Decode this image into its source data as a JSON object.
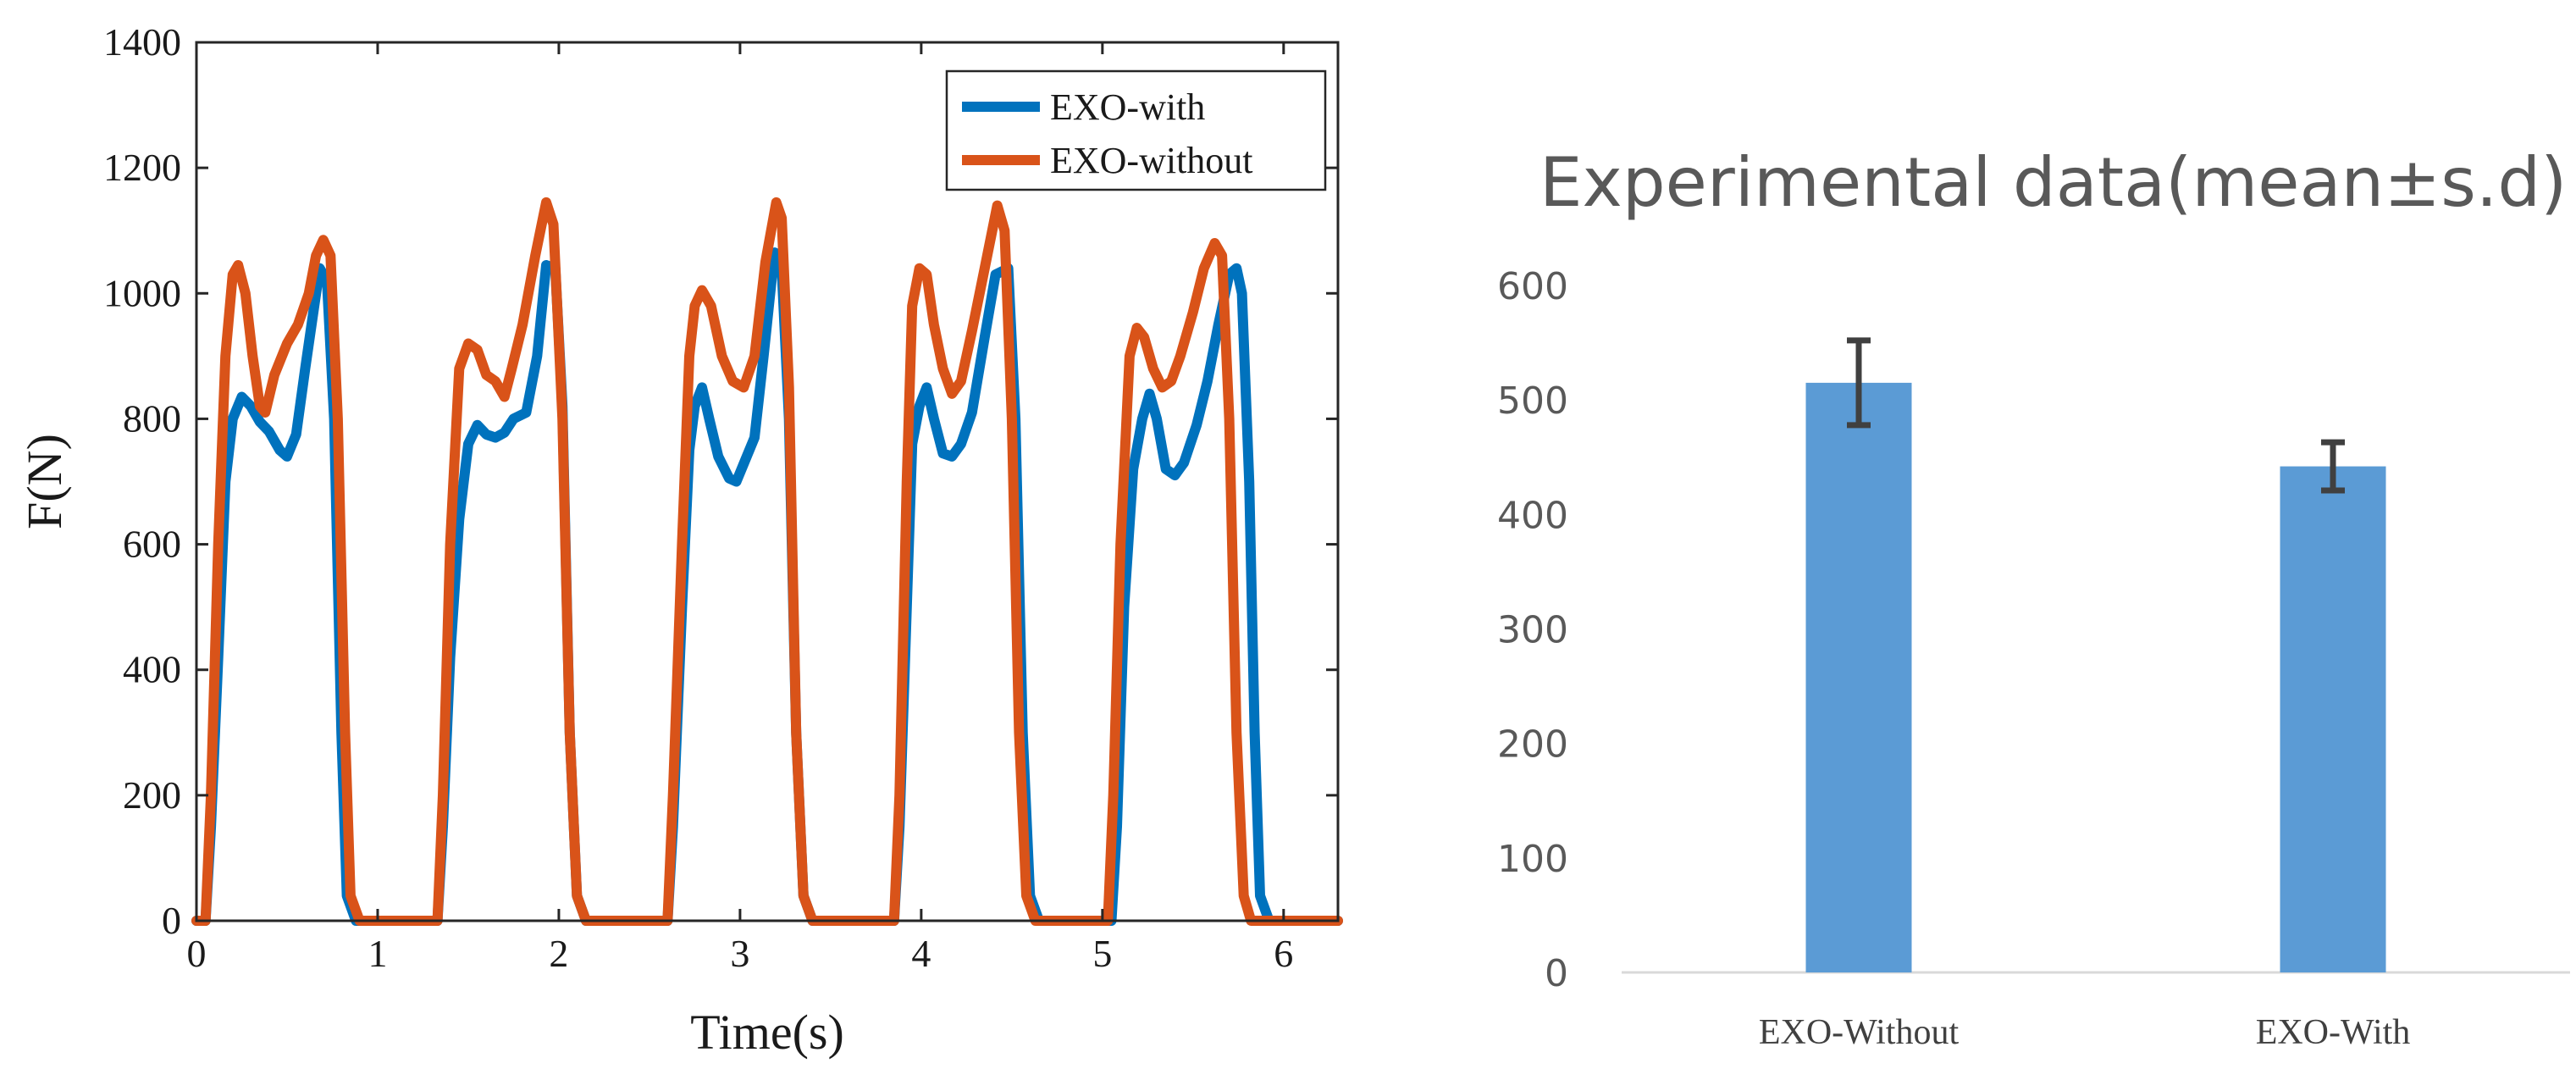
{
  "chart_data": [
    {
      "type": "line",
      "title": "",
      "xlabel": "Time(s)",
      "ylabel": "F(N)",
      "xlim": [
        0,
        6.3
      ],
      "ylim": [
        0,
        1400
      ],
      "xticks": [
        0,
        1,
        2,
        3,
        4,
        5,
        6
      ],
      "yticks": [
        0,
        200,
        400,
        600,
        800,
        1000,
        1200,
        1400
      ],
      "legend_position": "top-right",
      "series": [
        {
          "name": "EXO-with",
          "color": "#0072BD",
          "points": [
            [
              0.0,
              0
            ],
            [
              0.05,
              0
            ],
            [
              0.08,
              150
            ],
            [
              0.12,
              420
            ],
            [
              0.16,
              700
            ],
            [
              0.2,
              800
            ],
            [
              0.25,
              835
            ],
            [
              0.3,
              820
            ],
            [
              0.35,
              795
            ],
            [
              0.4,
              780
            ],
            [
              0.46,
              750
            ],
            [
              0.5,
              740
            ],
            [
              0.55,
              775
            ],
            [
              0.6,
              880
            ],
            [
              0.65,
              980
            ],
            [
              0.68,
              1040
            ],
            [
              0.72,
              1020
            ],
            [
              0.76,
              800
            ],
            [
              0.8,
              300
            ],
            [
              0.83,
              40
            ],
            [
              0.88,
              0
            ],
            [
              1.0,
              0
            ],
            [
              1.33,
              0
            ],
            [
              1.36,
              150
            ],
            [
              1.4,
              420
            ],
            [
              1.45,
              640
            ],
            [
              1.5,
              760
            ],
            [
              1.55,
              790
            ],
            [
              1.6,
              775
            ],
            [
              1.65,
              770
            ],
            [
              1.7,
              778
            ],
            [
              1.75,
              800
            ],
            [
              1.82,
              810
            ],
            [
              1.88,
              900
            ],
            [
              1.93,
              1045
            ],
            [
              1.98,
              1040
            ],
            [
              2.02,
              820
            ],
            [
              2.06,
              300
            ],
            [
              2.1,
              40
            ],
            [
              2.15,
              0
            ],
            [
              2.6,
              0
            ],
            [
              2.63,
              150
            ],
            [
              2.68,
              500
            ],
            [
              2.72,
              750
            ],
            [
              2.75,
              820
            ],
            [
              2.79,
              850
            ],
            [
              2.83,
              800
            ],
            [
              2.88,
              740
            ],
            [
              2.94,
              705
            ],
            [
              2.98,
              700
            ],
            [
              3.03,
              735
            ],
            [
              3.08,
              770
            ],
            [
              3.13,
              900
            ],
            [
              3.19,
              1065
            ],
            [
              3.23,
              1040
            ],
            [
              3.27,
              800
            ],
            [
              3.31,
              300
            ],
            [
              3.35,
              40
            ],
            [
              3.4,
              0
            ],
            [
              3.85,
              0
            ],
            [
              3.88,
              150
            ],
            [
              3.92,
              500
            ],
            [
              3.95,
              760
            ],
            [
              3.99,
              820
            ],
            [
              4.03,
              850
            ],
            [
              4.07,
              800
            ],
            [
              4.12,
              745
            ],
            [
              4.17,
              740
            ],
            [
              4.22,
              760
            ],
            [
              4.28,
              810
            ],
            [
              4.35,
              930
            ],
            [
              4.41,
              1030
            ],
            [
              4.48,
              1040
            ],
            [
              4.52,
              800
            ],
            [
              4.56,
              300
            ],
            [
              4.6,
              40
            ],
            [
              4.65,
              0
            ],
            [
              5.05,
              0
            ],
            [
              5.08,
              150
            ],
            [
              5.12,
              500
            ],
            [
              5.17,
              720
            ],
            [
              5.22,
              800
            ],
            [
              5.26,
              840
            ],
            [
              5.3,
              800
            ],
            [
              5.35,
              720
            ],
            [
              5.4,
              710
            ],
            [
              5.45,
              730
            ],
            [
              5.52,
              790
            ],
            [
              5.58,
              860
            ],
            [
              5.64,
              950
            ],
            [
              5.7,
              1030
            ],
            [
              5.74,
              1040
            ],
            [
              5.77,
              1000
            ],
            [
              5.81,
              700
            ],
            [
              5.84,
              300
            ],
            [
              5.87,
              40
            ],
            [
              5.92,
              0
            ],
            [
              6.3,
              0
            ]
          ]
        },
        {
          "name": "EXO-without",
          "color": "#D95319",
          "points": [
            [
              0.0,
              0
            ],
            [
              0.05,
              0
            ],
            [
              0.08,
              200
            ],
            [
              0.12,
              600
            ],
            [
              0.16,
              900
            ],
            [
              0.2,
              1030
            ],
            [
              0.23,
              1045
            ],
            [
              0.27,
              1000
            ],
            [
              0.31,
              900
            ],
            [
              0.35,
              820
            ],
            [
              0.38,
              810
            ],
            [
              0.43,
              870
            ],
            [
              0.5,
              920
            ],
            [
              0.56,
              950
            ],
            [
              0.62,
              1000
            ],
            [
              0.66,
              1060
            ],
            [
              0.7,
              1085
            ],
            [
              0.74,
              1060
            ],
            [
              0.78,
              800
            ],
            [
              0.82,
              300
            ],
            [
              0.85,
              40
            ],
            [
              0.9,
              0
            ],
            [
              1.0,
              0
            ],
            [
              1.33,
              0
            ],
            [
              1.36,
              200
            ],
            [
              1.4,
              600
            ],
            [
              1.45,
              880
            ],
            [
              1.5,
              920
            ],
            [
              1.55,
              910
            ],
            [
              1.6,
              870
            ],
            [
              1.65,
              860
            ],
            [
              1.7,
              835
            ],
            [
              1.74,
              880
            ],
            [
              1.8,
              950
            ],
            [
              1.87,
              1060
            ],
            [
              1.93,
              1145
            ],
            [
              1.97,
              1110
            ],
            [
              2.02,
              800
            ],
            [
              2.06,
              300
            ],
            [
              2.1,
              40
            ],
            [
              2.15,
              0
            ],
            [
              2.6,
              0
            ],
            [
              2.63,
              200
            ],
            [
              2.68,
              600
            ],
            [
              2.72,
              900
            ],
            [
              2.75,
              980
            ],
            [
              2.79,
              1005
            ],
            [
              2.84,
              980
            ],
            [
              2.9,
              900
            ],
            [
              2.96,
              860
            ],
            [
              3.02,
              850
            ],
            [
              3.08,
              900
            ],
            [
              3.14,
              1050
            ],
            [
              3.2,
              1145
            ],
            [
              3.23,
              1120
            ],
            [
              3.27,
              850
            ],
            [
              3.31,
              300
            ],
            [
              3.35,
              40
            ],
            [
              3.4,
              0
            ],
            [
              3.85,
              0
            ],
            [
              3.88,
              200
            ],
            [
              3.92,
              700
            ],
            [
              3.95,
              980
            ],
            [
              3.99,
              1040
            ],
            [
              4.03,
              1030
            ],
            [
              4.07,
              950
            ],
            [
              4.12,
              880
            ],
            [
              4.17,
              840
            ],
            [
              4.22,
              860
            ],
            [
              4.28,
              940
            ],
            [
              4.35,
              1040
            ],
            [
              4.42,
              1140
            ],
            [
              4.46,
              1100
            ],
            [
              4.5,
              800
            ],
            [
              4.54,
              300
            ],
            [
              4.58,
              40
            ],
            [
              4.63,
              0
            ],
            [
              5.03,
              0
            ],
            [
              5.06,
              200
            ],
            [
              5.1,
              600
            ],
            [
              5.15,
              900
            ],
            [
              5.19,
              945
            ],
            [
              5.23,
              930
            ],
            [
              5.28,
              880
            ],
            [
              5.33,
              850
            ],
            [
              5.38,
              860
            ],
            [
              5.43,
              900
            ],
            [
              5.5,
              970
            ],
            [
              5.56,
              1040
            ],
            [
              5.62,
              1080
            ],
            [
              5.66,
              1060
            ],
            [
              5.7,
              800
            ],
            [
              5.74,
              300
            ],
            [
              5.78,
              40
            ],
            [
              5.82,
              0
            ],
            [
              6.3,
              0
            ]
          ]
        }
      ]
    },
    {
      "type": "bar",
      "title": "Experimental data(mean±s.d)",
      "xlabel": "",
      "ylabel": "",
      "ylim": [
        0,
        600
      ],
      "yticks": [
        0,
        100,
        200,
        300,
        400,
        500,
        600
      ],
      "bar_color": "#5B9BD5",
      "errorbar_color": "#404040",
      "categories": [
        "EXO-Without",
        "EXO-With"
      ],
      "values": [
        515,
        442
      ],
      "errors": [
        37,
        21
      ]
    }
  ]
}
